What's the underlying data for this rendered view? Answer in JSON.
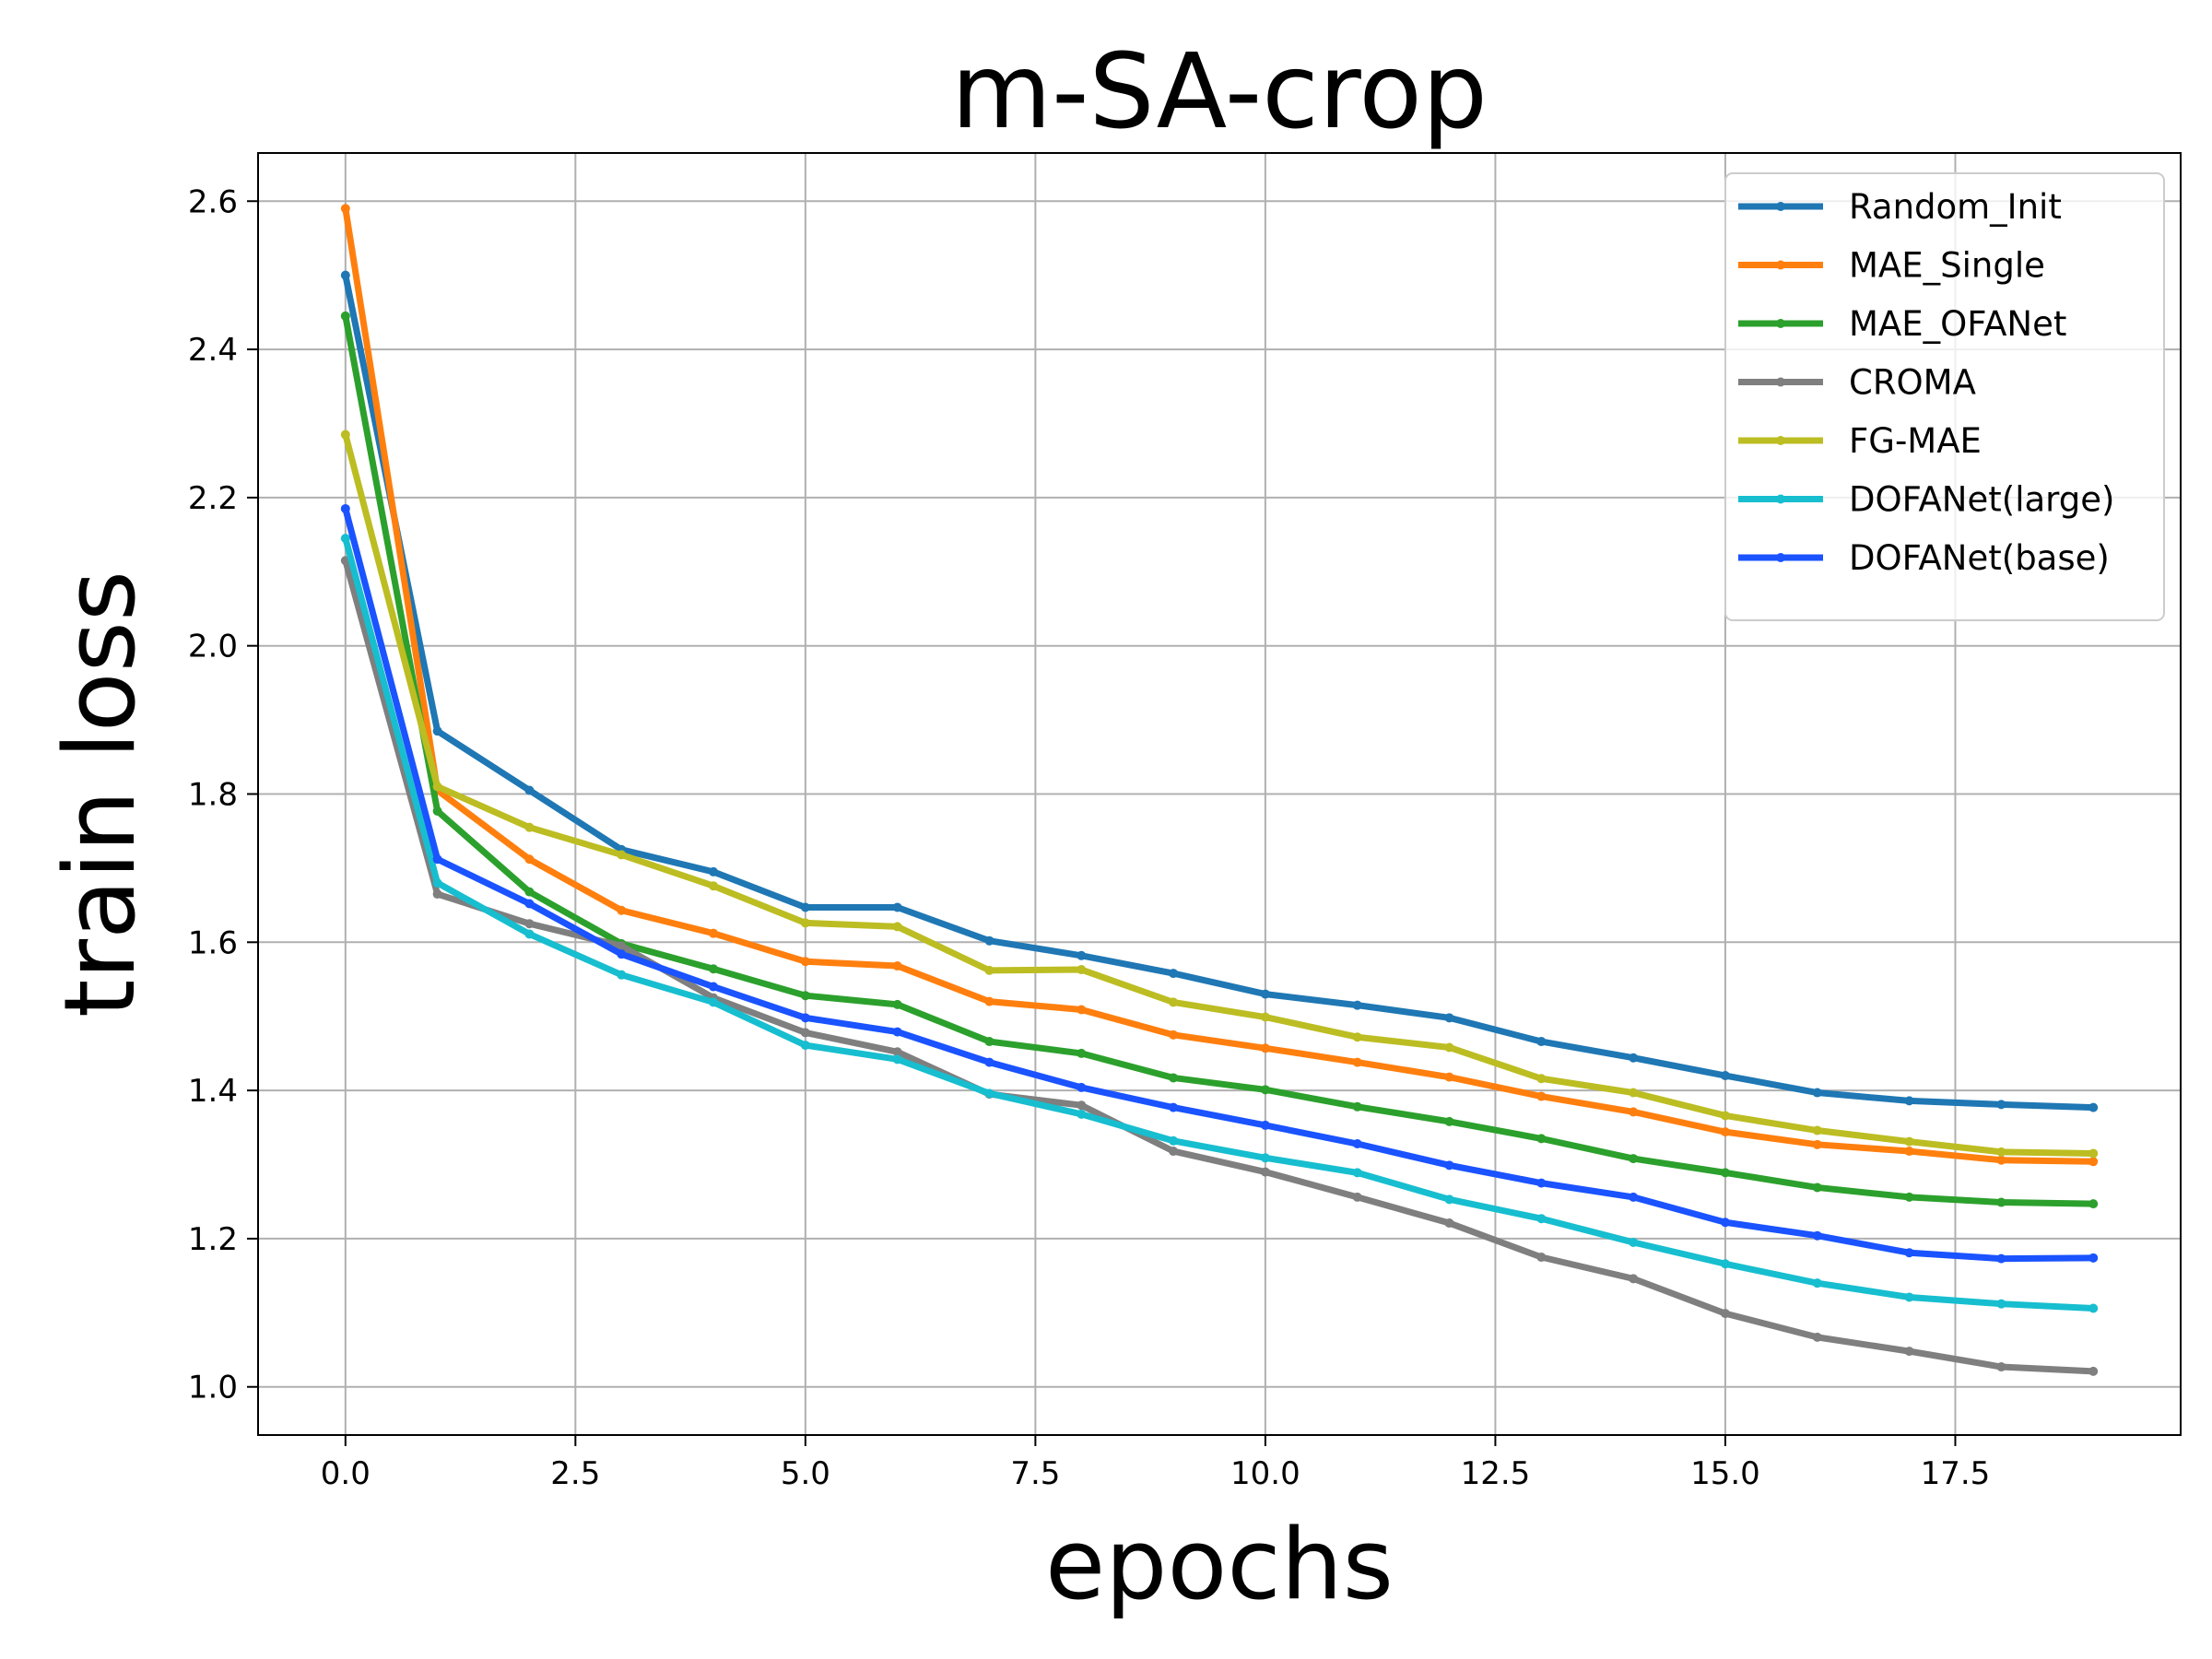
{
  "chart_data": {
    "type": "line",
    "title": "m-SA-crop",
    "xlabel": "epochs",
    "ylabel": "train loss",
    "xlim": [
      -0.95,
      19.95
    ],
    "ylim": [
      0.935,
      2.665
    ],
    "xticks": [
      "0.0",
      "2.5",
      "5.0",
      "7.5",
      "10.0",
      "12.5",
      "15.0",
      "17.5"
    ],
    "yticks": [
      "1.0",
      "1.2",
      "1.4",
      "1.6",
      "1.8",
      "2.0",
      "2.2",
      "2.4",
      "2.6"
    ],
    "grid": true,
    "legend_position": "top-right",
    "x": [
      0,
      1,
      2,
      3,
      4,
      5,
      6,
      7,
      8,
      9,
      10,
      11,
      12,
      13,
      14,
      15,
      16,
      17,
      18,
      19
    ],
    "series": [
      {
        "name": "Random_Init",
        "color": "#1f77b4",
        "values": [
          2.5,
          1.885,
          1.805,
          1.725,
          1.695,
          1.647,
          1.647,
          1.602,
          1.582,
          1.558,
          1.53,
          1.515,
          1.498,
          1.466,
          1.444,
          1.42,
          1.397,
          1.386,
          1.381,
          1.377
        ]
      },
      {
        "name": "MAE_Single",
        "color": "#ff7f0e",
        "values": [
          2.59,
          1.805,
          1.712,
          1.643,
          1.612,
          1.574,
          1.568,
          1.52,
          1.509,
          1.475,
          1.457,
          1.438,
          1.418,
          1.392,
          1.371,
          1.344,
          1.327,
          1.318,
          1.306,
          1.304
        ]
      },
      {
        "name": "MAE_OFANet",
        "color": "#2ca02c",
        "values": [
          2.445,
          1.777,
          1.668,
          1.598,
          1.564,
          1.528,
          1.516,
          1.466,
          1.45,
          1.417,
          1.401,
          1.378,
          1.358,
          1.335,
          1.308,
          1.289,
          1.269,
          1.256,
          1.249,
          1.247
        ]
      },
      {
        "name": "CROMA",
        "color": "#7f7f7f",
        "values": [
          2.115,
          1.665,
          1.625,
          1.595,
          1.525,
          1.478,
          1.452,
          1.395,
          1.38,
          1.318,
          1.29,
          1.256,
          1.221,
          1.175,
          1.146,
          1.099,
          1.067,
          1.048,
          1.027,
          1.021
        ]
      },
      {
        "name": "FG-MAE",
        "color": "#bcbd22",
        "values": [
          2.285,
          1.81,
          1.755,
          1.718,
          1.676,
          1.626,
          1.621,
          1.562,
          1.563,
          1.519,
          1.499,
          1.472,
          1.458,
          1.416,
          1.397,
          1.366,
          1.346,
          1.331,
          1.317,
          1.315
        ]
      },
      {
        "name": "DOFANet(large)",
        "color": "#17becf",
        "values": [
          2.145,
          1.68,
          1.611,
          1.556,
          1.519,
          1.461,
          1.442,
          1.396,
          1.368,
          1.332,
          1.309,
          1.289,
          1.253,
          1.227,
          1.195,
          1.166,
          1.14,
          1.121,
          1.112,
          1.106
        ]
      },
      {
        "name": "DOFANet(base)",
        "color": "#1a53ff",
        "values": [
          2.185,
          1.712,
          1.652,
          1.584,
          1.54,
          1.498,
          1.479,
          1.438,
          1.404,
          1.377,
          1.353,
          1.328,
          1.299,
          1.275,
          1.256,
          1.222,
          1.204,
          1.181,
          1.173,
          1.174
        ]
      }
    ]
  }
}
